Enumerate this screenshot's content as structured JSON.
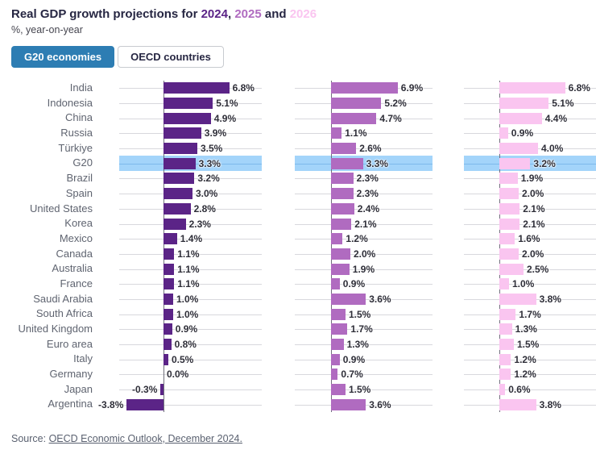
{
  "title": {
    "prefix": "Real GDP growth projections for ",
    "year1": "2024",
    "sep1": ", ",
    "year2": "2025",
    "sep2": " and ",
    "year3": "2026"
  },
  "subtitle": "%, year-on-year",
  "toggle": {
    "g20_label": "G20 economies",
    "oecd_label": "OECD countries",
    "selected": "G20 economies"
  },
  "source": {
    "prefix": "Source: ",
    "link_text": "OECD Economic Outlook, December 2024."
  },
  "colors": {
    "year_2024": "#5b2487",
    "year_2025": "#b06bc0",
    "year_2026": "#fac5f0",
    "highlight_band": "#a3d4fa",
    "active_button": "#2d7db3",
    "title_text": "#262642"
  },
  "chart_data": {
    "type": "bar",
    "orientation": "horizontal",
    "title": "Real GDP growth projections for 2024, 2025 and 2026",
    "subtitle": "%, year-on-year",
    "value_suffix": "%",
    "legend": "color-coded years in title",
    "grid": true,
    "xlim": [
      -4,
      7
    ],
    "highlight_category": "G20",
    "categories": [
      "India",
      "Indonesia",
      "China",
      "Russia",
      "Türkiye",
      "G20",
      "Brazil",
      "Spain",
      "United States",
      "Korea",
      "Mexico",
      "Canada",
      "Australia",
      "France",
      "Saudi Arabia",
      "South Africa",
      "United Kingdom",
      "Euro area",
      "Italy",
      "Germany",
      "Japan",
      "Argentina"
    ],
    "series": [
      {
        "name": "2024",
        "color": "#5b2487",
        "values": [
          6.8,
          5.1,
          4.9,
          3.9,
          3.5,
          3.3,
          3.2,
          3.0,
          2.8,
          2.3,
          1.4,
          1.1,
          1.1,
          1.1,
          1.0,
          1.0,
          0.9,
          0.8,
          0.5,
          0.0,
          -0.3,
          -3.8
        ]
      },
      {
        "name": "2025",
        "color": "#b06bc0",
        "values": [
          6.9,
          5.2,
          4.7,
          1.1,
          2.6,
          3.3,
          2.3,
          2.3,
          2.4,
          2.1,
          1.2,
          2.0,
          1.9,
          0.9,
          3.6,
          1.5,
          1.7,
          1.3,
          0.9,
          0.7,
          1.5,
          3.6
        ]
      },
      {
        "name": "2026",
        "color": "#fac5f0",
        "values": [
          6.8,
          5.1,
          4.4,
          0.9,
          4.0,
          3.2,
          1.9,
          2.0,
          2.1,
          2.1,
          1.6,
          2.0,
          2.5,
          1.0,
          3.8,
          1.7,
          1.3,
          1.5,
          1.2,
          1.2,
          0.6,
          3.8
        ]
      }
    ]
  }
}
